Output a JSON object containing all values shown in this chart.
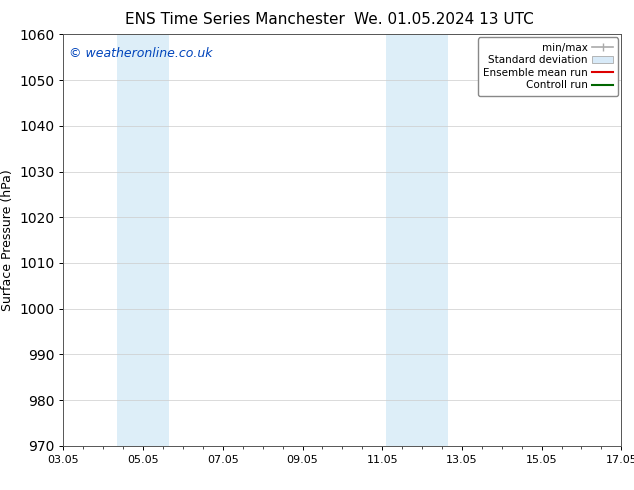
{
  "title_left": "ENS Time Series Manchester",
  "title_right": "We. 01.05.2024 13 UTC",
  "ylabel": "Surface Pressure (hPa)",
  "ylim": [
    970,
    1060
  ],
  "yticks": [
    970,
    980,
    990,
    1000,
    1010,
    1020,
    1030,
    1040,
    1050,
    1060
  ],
  "xtick_labels": [
    "03.05",
    "05.05",
    "07.05",
    "09.05",
    "11.05",
    "13.05",
    "15.05",
    "17.05"
  ],
  "xtick_positions": [
    0,
    2,
    4,
    6,
    8,
    10,
    12,
    14
  ],
  "xlim": [
    0,
    14
  ],
  "shaded_regions": [
    {
      "x_start": 1.35,
      "x_end": 2.65,
      "color": "#ddeef8"
    },
    {
      "x_start": 8.1,
      "x_end": 9.65,
      "color": "#ddeef8"
    }
  ],
  "watermark_text": "© weatheronline.co.uk",
  "watermark_color": "#0044bb",
  "watermark_fontsize": 9,
  "legend_items": [
    {
      "label": "min/max",
      "color": "#aaaaaa",
      "type": "errorbar"
    },
    {
      "label": "Standard deviation",
      "color": "#d8eaf8",
      "type": "band"
    },
    {
      "label": "Ensemble mean run",
      "color": "#dd0000",
      "type": "line"
    },
    {
      "label": "Controll run",
      "color": "#006600",
      "type": "line"
    }
  ],
  "background_color": "#ffffff",
  "grid_color": "#cccccc",
  "title_fontsize": 11,
  "axis_label_fontsize": 9,
  "tick_fontsize": 8,
  "legend_fontsize": 7.5
}
